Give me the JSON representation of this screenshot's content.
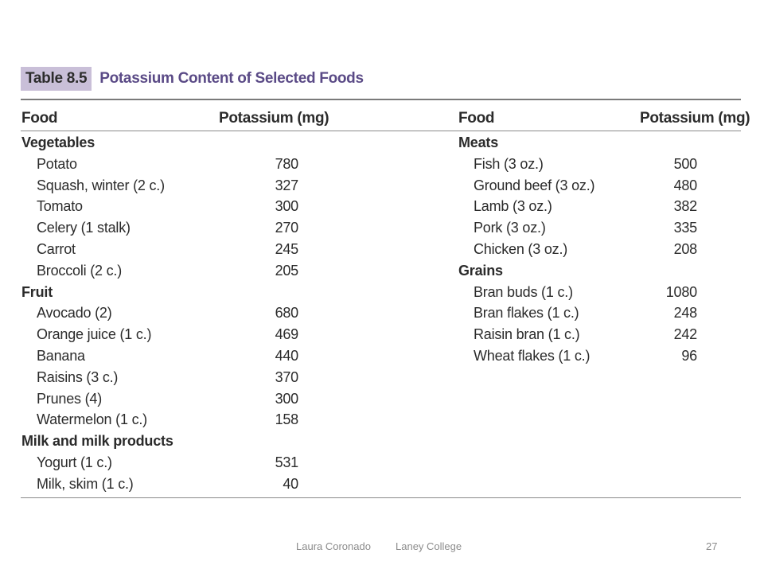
{
  "table": {
    "label": "Table 8.5",
    "title": "Potassium Content of Selected Foods",
    "col_food": "Food",
    "col_potassium": "Potassium (mg)",
    "left": [
      {
        "type": "cat",
        "name": "Vegetables"
      },
      {
        "type": "item",
        "name": "Potato",
        "value": "780"
      },
      {
        "type": "item",
        "name": "Squash, winter (2 c.)",
        "value": "327"
      },
      {
        "type": "item",
        "name": "Tomato",
        "value": "300"
      },
      {
        "type": "item",
        "name": "Celery (1 stalk)",
        "value": "270"
      },
      {
        "type": "item",
        "name": "Carrot",
        "value": "245"
      },
      {
        "type": "item",
        "name": "Broccoli (2 c.)",
        "value": "205"
      },
      {
        "type": "cat",
        "name": "Fruit"
      },
      {
        "type": "item",
        "name": "Avocado (2)",
        "value": "680"
      },
      {
        "type": "item",
        "name": "Orange juice (1 c.)",
        "value": "469"
      },
      {
        "type": "item",
        "name": "Banana",
        "value": "440"
      },
      {
        "type": "item",
        "name": "Raisins (3 c.)",
        "value": "370"
      },
      {
        "type": "item",
        "name": "Prunes (4)",
        "value": "300"
      },
      {
        "type": "item",
        "name": "Watermelon (1 c.)",
        "value": "158"
      },
      {
        "type": "cat",
        "name": "Milk and milk products"
      },
      {
        "type": "item",
        "name": "Yogurt (1 c.)",
        "value": "531"
      },
      {
        "type": "item",
        "name": "Milk, skim (1 c.)",
        "value": "40"
      }
    ],
    "right": [
      {
        "type": "cat",
        "name": "Meats"
      },
      {
        "type": "item",
        "name": "Fish (3 oz.)",
        "value": "500"
      },
      {
        "type": "item",
        "name": "Ground beef (3 oz.)",
        "value": "480"
      },
      {
        "type": "item",
        "name": "Lamb (3 oz.)",
        "value": "382"
      },
      {
        "type": "item",
        "name": "Pork (3 oz.)",
        "value": "335"
      },
      {
        "type": "item",
        "name": "Chicken (3 oz.)",
        "value": "208"
      },
      {
        "type": "cat",
        "name": "Grains"
      },
      {
        "type": "item",
        "name": "Bran buds (1 c.)",
        "value": "1080"
      },
      {
        "type": "item",
        "name": "Bran flakes (1 c.)",
        "value": "248"
      },
      {
        "type": "item",
        "name": "Raisin bran (1 c.)",
        "value": "242"
      },
      {
        "type": "item",
        "name": "Wheat flakes (1 c.)",
        "value": "96"
      }
    ]
  },
  "footer": {
    "author": "Laura Coronado",
    "institution": "Laney College",
    "page_number": "27"
  },
  "colors": {
    "label_bg": "#c9bfd8",
    "title_text": "#5a4a86",
    "rule": "#8a8a8a",
    "footer_text": "#8c8c8c"
  }
}
